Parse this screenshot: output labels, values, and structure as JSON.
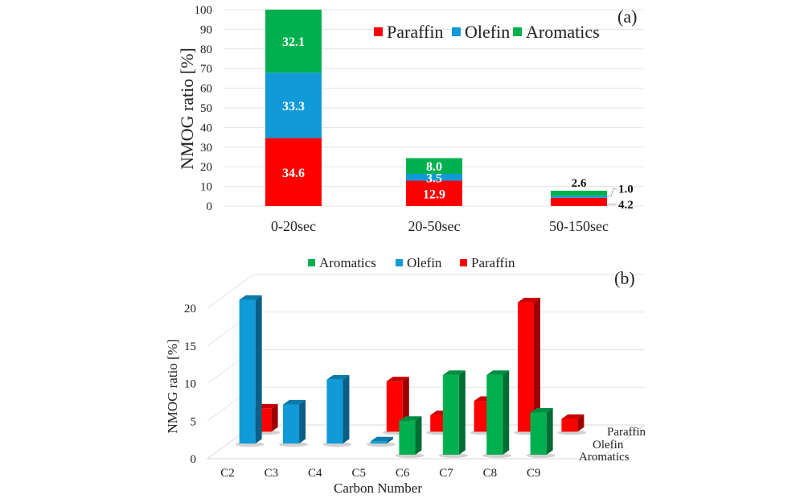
{
  "chart_data": [
    {
      "panel": "(a)",
      "type": "bar",
      "stacked": true,
      "title": "",
      "xlabel": "",
      "ylabel": "NMOG ratio [%]",
      "ylim": [
        0,
        100
      ],
      "yticks": [
        0,
        10,
        20,
        30,
        40,
        50,
        60,
        70,
        80,
        90,
        100
      ],
      "grid": true,
      "legend_position": "top-right",
      "categories": [
        "0-20sec",
        "20-50sec",
        "50-150sec"
      ],
      "series": [
        {
          "name": "Paraffin",
          "color": "#ff0000",
          "values": [
            34.6,
            12.9,
            4.2
          ]
        },
        {
          "name": "Olefin",
          "color": "#109ad7",
          "values": [
            33.3,
            3.5,
            1.0
          ]
        },
        {
          "name": "Aromatics",
          "color": "#00b050",
          "values": [
            32.1,
            8.0,
            2.6
          ]
        }
      ],
      "data_labels": [
        [
          "34.6",
          "33.3",
          "32.1"
        ],
        [
          "12.9",
          "3.5",
          "8.0"
        ],
        [
          "4.2",
          "1.0",
          "2.6"
        ]
      ]
    },
    {
      "panel": "(b)",
      "type": "bar",
      "style": "3d-clustered-depth",
      "title": "",
      "xlabel": "Carbon Number",
      "ylabel": "NMOG ratio [%]",
      "ylim": [
        0,
        20
      ],
      "yticks": [
        0,
        5,
        10,
        15,
        20
      ],
      "grid": true,
      "legend_position": "top",
      "legend_order": [
        "Aromatics",
        "Olefin",
        "Paraffin"
      ],
      "depth_labels": [
        "Paraffin",
        "Olefin",
        "Aromatics"
      ],
      "categories": [
        "C2",
        "C3",
        "C4",
        "C5",
        "C6",
        "C7",
        "C8",
        "C9"
      ],
      "series": [
        {
          "name": "Aromatics",
          "color": "#00b050",
          "values": [
            0,
            0,
            0,
            0,
            4.5,
            10.6,
            10.6,
            5.6
          ]
        },
        {
          "name": "Olefin",
          "color": "#109ad7",
          "values": [
            19.1,
            5.2,
            8.5,
            0.3,
            0,
            0,
            0,
            0
          ]
        },
        {
          "name": "Paraffin",
          "color": "#ff0000",
          "values": [
            3.1,
            0,
            0,
            6.7,
            2.2,
            4.1,
            17.2,
            1.7
          ]
        }
      ]
    }
  ]
}
